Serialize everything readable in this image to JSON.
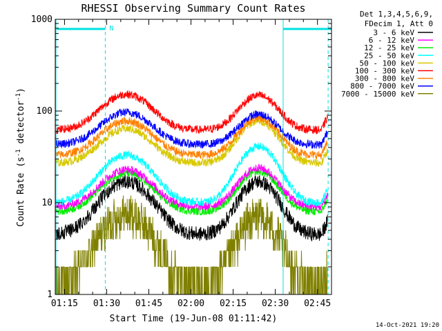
{
  "chart_data": {
    "type": "line",
    "title": "RHESSI Observing Summary Count Rates",
    "xlabel": "Start Time (19-Jun-08 01:11:42)",
    "ylabel_main": "Count Rate (s",
    "ylabel_sup1": "-1",
    "ylabel_mid": " detector",
    "ylabel_sup2": "-1",
    "ylabel_end": ")",
    "y_scale": "log",
    "xlim_minutes": [
      71.7,
      170
    ],
    "ylim": [
      1,
      1000
    ],
    "x_ticks": [
      {
        "m": 75,
        "label": "01:15"
      },
      {
        "m": 90,
        "label": "01:30"
      },
      {
        "m": 105,
        "label": "01:45"
      },
      {
        "m": 120,
        "label": "02:00"
      },
      {
        "m": 135,
        "label": "02:15"
      },
      {
        "m": 150,
        "label": "02:30"
      },
      {
        "m": 165,
        "label": "02:45"
      }
    ],
    "y_ticks": [
      {
        "v": 1,
        "label": "1"
      },
      {
        "v": 10,
        "label": "10"
      },
      {
        "v": 100,
        "label": "100"
      },
      {
        "v": 1000,
        "label": "1000"
      }
    ],
    "legend_header": [
      "Det 1,3,4,5,6,9,",
      "FDecim 1, Att 0"
    ],
    "series": [
      {
        "name": "3 - 6 keV",
        "color": "#000000",
        "base": 4.5,
        "peak1": 17,
        "peak2": 17
      },
      {
        "name": "6 - 12 keV",
        "color": "#ff00ff",
        "base": 9,
        "peak1": 23,
        "peak2": 24
      },
      {
        "name": "12 - 25 keV",
        "color": "#00ee00",
        "base": 8,
        "peak1": 21,
        "peak2": 22
      },
      {
        "name": "25 - 50 keV",
        "color": "#00ffff",
        "base": 10,
        "peak1": 33,
        "peak2": 41
      },
      {
        "name": "50 - 100 keV",
        "color": "#d8c800",
        "base": 27,
        "peak1": 64,
        "peak2": 78
      },
      {
        "name": "100 - 300 keV",
        "color": "#ff0000",
        "base": 62,
        "peak1": 152,
        "peak2": 148
      },
      {
        "name": "300 - 800 keV",
        "color": "#ff8000",
        "base": 33,
        "peak1": 78,
        "peak2": 84
      },
      {
        "name": "800 - 7000 keV",
        "color": "#0000ff",
        "base": 43,
        "peak1": 97,
        "peak2": 92
      },
      {
        "name": "7000 - 15000 keV",
        "color": "#808000",
        "base": 1.3,
        "peak1": 7.5,
        "peak2": 7
      }
    ],
    "night_intervals": [
      [
        71.7,
        89.5
      ],
      [
        152.8,
        170
      ]
    ],
    "night_flag": "N",
    "saa_lines": [
      168.8
    ]
  },
  "timestamp": "14-Oct-2021 19:20"
}
